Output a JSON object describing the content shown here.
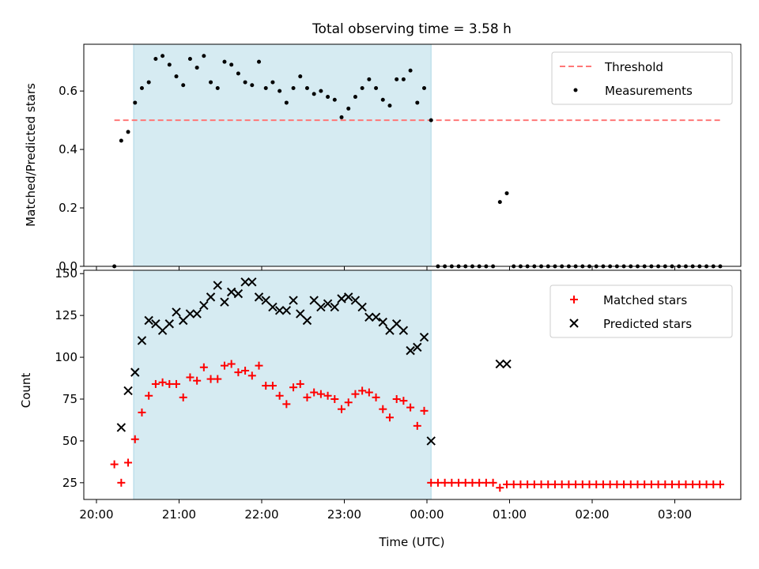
{
  "title": "Total observing time = 3.58 h",
  "chart_data": [
    {
      "type": "scatter",
      "ylabel": "Matched/Predicted stars",
      "ylim": [
        0,
        0.76
      ],
      "yticks": [
        0.0,
        0.2,
        0.4,
        0.6
      ],
      "ytick_labels": [
        "0.0",
        "0.2",
        "0.4",
        "0.6"
      ],
      "shaded_interval": [
        "20:27",
        "00:03"
      ],
      "threshold": {
        "name": "Threshold",
        "value": 0.5,
        "x_range": [
          "20:13",
          "03:35"
        ],
        "color": "#ff7777"
      },
      "legend": {
        "placement": "top-right",
        "entries": [
          "Threshold",
          "Measurements"
        ]
      },
      "series": [
        {
          "name": "Measurements",
          "color": "#000000",
          "x": [
            "20:13",
            "20:18",
            "20:23",
            "20:28",
            "20:33",
            "20:38",
            "20:43",
            "20:48",
            "20:53",
            "20:58",
            "21:03",
            "21:08",
            "21:13",
            "21:18",
            "21:23",
            "21:28",
            "21:33",
            "21:38",
            "21:43",
            "21:48",
            "21:53",
            "21:58",
            "22:03",
            "22:08",
            "22:13",
            "22:18",
            "22:23",
            "22:28",
            "22:33",
            "22:38",
            "22:43",
            "22:48",
            "22:53",
            "22:58",
            "23:03",
            "23:08",
            "23:13",
            "23:18",
            "23:23",
            "23:28",
            "23:33",
            "23:38",
            "23:43",
            "23:48",
            "23:53",
            "23:58",
            "00:03",
            "00:08",
            "00:13",
            "00:18",
            "00:23",
            "00:28",
            "00:33",
            "00:38",
            "00:43",
            "00:48",
            "00:53",
            "00:58",
            "01:03",
            "01:08",
            "01:13",
            "01:18",
            "01:23",
            "01:28",
            "01:33",
            "01:38",
            "01:43",
            "01:48",
            "01:53",
            "01:58",
            "02:03",
            "02:08",
            "02:13",
            "02:18",
            "02:23",
            "02:28",
            "02:33",
            "02:38",
            "02:43",
            "02:48",
            "02:53",
            "02:58",
            "03:03",
            "03:08",
            "03:13",
            "03:18",
            "03:23",
            "03:28",
            "03:33"
          ],
          "y": [
            0.0,
            0.43,
            0.46,
            0.56,
            0.61,
            0.63,
            0.71,
            0.72,
            0.69,
            0.65,
            0.62,
            0.71,
            0.68,
            0.72,
            0.63,
            0.61,
            0.7,
            0.69,
            0.66,
            0.63,
            0.62,
            0.7,
            0.61,
            0.63,
            0.6,
            0.56,
            0.61,
            0.65,
            0.61,
            0.59,
            0.6,
            0.58,
            0.57,
            0.51,
            0.54,
            0.58,
            0.61,
            0.64,
            0.61,
            0.57,
            0.55,
            0.64,
            0.64,
            0.67,
            0.56,
            0.61,
            0.5,
            0.0,
            0.0,
            0.0,
            0.0,
            0.0,
            0.0,
            0.0,
            0.0,
            0.0,
            0.22,
            0.25,
            0.0,
            0.0,
            0.0,
            0.0,
            0.0,
            0.0,
            0.0,
            0.0,
            0.0,
            0.0,
            0.0,
            0.0,
            0.0,
            0.0,
            0.0,
            0.0,
            0.0,
            0.0,
            0.0,
            0.0,
            0.0,
            0.0,
            0.0,
            0.0,
            0.0,
            0.0,
            0.0,
            0.0,
            0.0,
            0.0,
            0.0
          ]
        }
      ]
    },
    {
      "type": "scatter",
      "xlabel": "Time (UTC)",
      "ylabel": "Count",
      "ylim": [
        15,
        152
      ],
      "yticks": [
        25,
        50,
        75,
        100,
        125,
        150
      ],
      "ytick_labels": [
        "25",
        "50",
        "75",
        "100",
        "125",
        "150"
      ],
      "xticks": [
        "20:00",
        "21:00",
        "22:00",
        "23:00",
        "00:00",
        "01:00",
        "02:00",
        "03:00"
      ],
      "shaded_interval": [
        "20:27",
        "00:03"
      ],
      "legend": {
        "placement": "top-right",
        "entries": [
          "Matched stars",
          "Predicted stars"
        ]
      },
      "series": [
        {
          "name": "Matched stars",
          "marker": "plus",
          "color": "#ff0000",
          "x": [
            "20:13",
            "20:18",
            "20:23",
            "20:28",
            "20:33",
            "20:38",
            "20:43",
            "20:48",
            "20:53",
            "20:58",
            "21:03",
            "21:08",
            "21:13",
            "21:18",
            "21:23",
            "21:28",
            "21:33",
            "21:38",
            "21:43",
            "21:48",
            "21:53",
            "21:58",
            "22:03",
            "22:08",
            "22:13",
            "22:18",
            "22:23",
            "22:28",
            "22:33",
            "22:38",
            "22:43",
            "22:48",
            "22:53",
            "22:58",
            "23:03",
            "23:08",
            "23:13",
            "23:18",
            "23:23",
            "23:28",
            "23:33",
            "23:38",
            "23:43",
            "23:48",
            "23:53",
            "23:58",
            "00:03",
            "00:08",
            "00:13",
            "00:18",
            "00:23",
            "00:28",
            "00:33",
            "00:38",
            "00:43",
            "00:48",
            "00:53",
            "00:58",
            "01:03",
            "01:08",
            "01:13",
            "01:18",
            "01:23",
            "01:28",
            "01:33",
            "01:38",
            "01:43",
            "01:48",
            "01:53",
            "01:58",
            "02:03",
            "02:08",
            "02:13",
            "02:18",
            "02:23",
            "02:28",
            "02:33",
            "02:38",
            "02:43",
            "02:48",
            "02:53",
            "02:58",
            "03:03",
            "03:08",
            "03:13",
            "03:18",
            "03:23",
            "03:28",
            "03:33"
          ],
          "y": [
            36,
            25,
            37,
            51,
            67,
            77,
            84,
            85,
            84,
            84,
            76,
            88,
            86,
            94,
            87,
            87,
            95,
            96,
            91,
            92,
            89,
            95,
            83,
            83,
            77,
            72,
            82,
            84,
            76,
            79,
            78,
            77,
            75,
            69,
            73,
            78,
            80,
            79,
            76,
            69,
            64,
            75,
            74,
            70,
            59,
            68,
            25,
            25,
            25,
            25,
            25,
            25,
            25,
            25,
            25,
            25,
            22,
            24,
            24,
            24,
            24,
            24,
            24,
            24,
            24,
            24,
            24,
            24,
            24,
            24,
            24,
            24,
            24,
            24,
            24,
            24,
            24,
            24,
            24,
            24,
            24,
            24,
            24,
            24,
            24,
            24,
            24,
            24,
            24
          ]
        },
        {
          "name": "Predicted stars",
          "marker": "x",
          "color": "#000000",
          "x": [
            "20:18",
            "20:23",
            "20:28",
            "20:33",
            "20:38",
            "20:43",
            "20:48",
            "20:53",
            "20:58",
            "21:03",
            "21:08",
            "21:13",
            "21:18",
            "21:23",
            "21:28",
            "21:33",
            "21:38",
            "21:43",
            "21:48",
            "21:53",
            "21:58",
            "22:03",
            "22:08",
            "22:13",
            "22:18",
            "22:23",
            "22:28",
            "22:33",
            "22:38",
            "22:43",
            "22:48",
            "22:53",
            "22:58",
            "23:03",
            "23:08",
            "23:13",
            "23:18",
            "23:23",
            "23:28",
            "23:33",
            "23:38",
            "23:43",
            "23:48",
            "23:53",
            "23:58",
            "00:03",
            "00:53",
            "00:58"
          ],
          "y": [
            58,
            80,
            91,
            110,
            122,
            120,
            116,
            120,
            127,
            122,
            126,
            126,
            131,
            136,
            143,
            133,
            139,
            138,
            145,
            145,
            136,
            134,
            130,
            128,
            128,
            134,
            126,
            122,
            134,
            130,
            132,
            130,
            135,
            136,
            134,
            130,
            124,
            124,
            121,
            116,
            120,
            116,
            104,
            106,
            112,
            50,
            96,
            96
          ]
        }
      ]
    }
  ]
}
